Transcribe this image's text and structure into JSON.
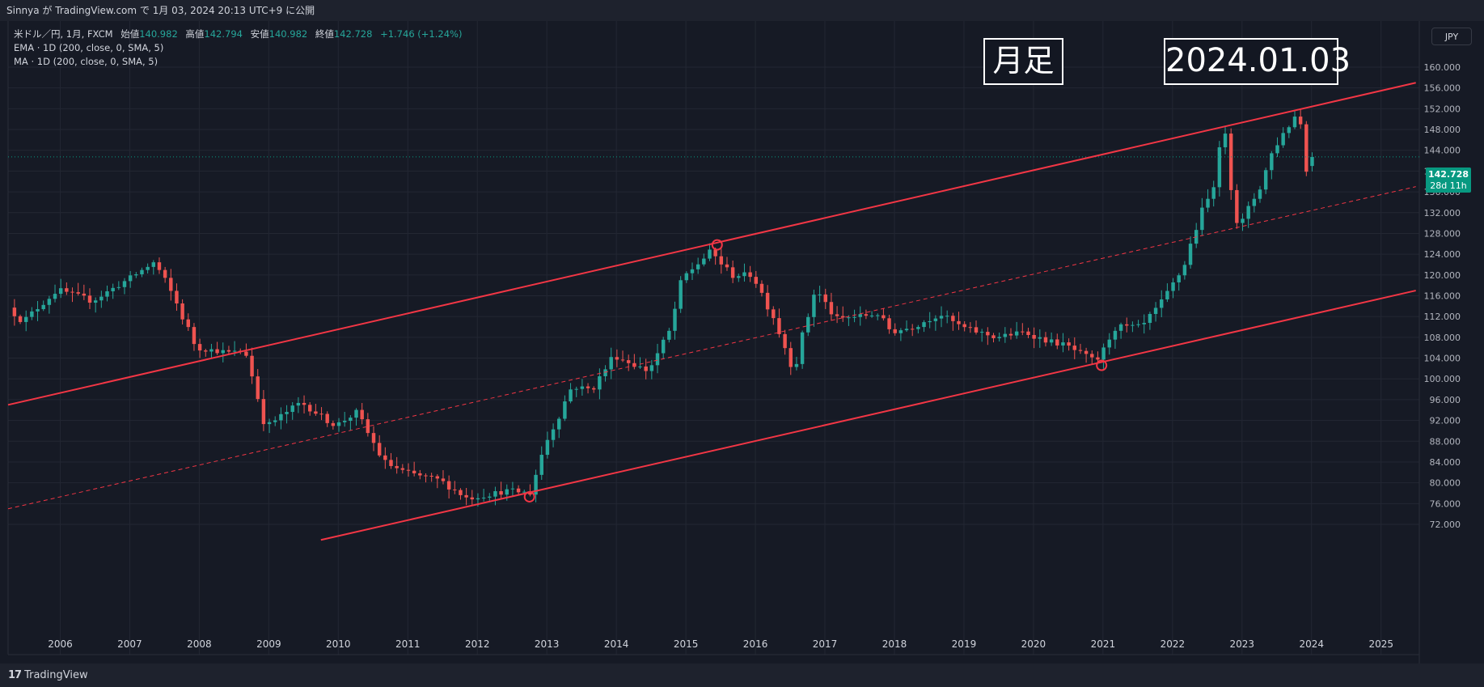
{
  "header": {
    "published_line": "Sinnya が TradingView.com で 1月 03, 2024 20:13 UTC+9 に公開"
  },
  "legend": {
    "symbol": "米ドル／円, 1月, FXCM",
    "open_label": "始値",
    "open_value": "140.982",
    "high_label": "高値",
    "high_value": "142.794",
    "low_label": "安値",
    "low_value": "140.982",
    "close_label": "終値",
    "close_value": "142.728",
    "change": "+1.746 (+1.24%)",
    "ema_line": "EMA · 1D (200, close, 0, SMA, 5)",
    "ma_line": "MA · 1D (200, close, 0, SMA, 5)"
  },
  "annotations": {
    "timeframe_box": "月足",
    "date_box": "2024.01.03"
  },
  "currency_button": "JPY",
  "price_tag": {
    "price": "142.728",
    "countdown": "28d 11h"
  },
  "footer": {
    "brand": "TradingView",
    "brand_mark": "17"
  },
  "colors": {
    "background": "#161a25",
    "up": "#26a69a",
    "down": "#ef5350",
    "trendline": "#f23645",
    "grid": "#232733"
  },
  "chart_data": {
    "type": "candlestick",
    "symbol": "USD/JPY",
    "interval": "1M",
    "ylim": [
      68,
      162
    ],
    "y_ticks": [
      72,
      76,
      80,
      84,
      88,
      92,
      96,
      100,
      104,
      108,
      112,
      116,
      120,
      124,
      128,
      132,
      136,
      140,
      144,
      148,
      152,
      156,
      160
    ],
    "x_ticks": [
      "2006",
      "2007",
      "2008",
      "2009",
      "2010",
      "2011",
      "2012",
      "2013",
      "2014",
      "2015",
      "2016",
      "2017",
      "2018",
      "2019",
      "2020",
      "2021",
      "2022",
      "2023",
      "2024",
      "2025"
    ],
    "xlim": [
      2005.25,
      2025.55
    ],
    "current_price": 142.728,
    "yearly_closes": [
      [
        2005.0,
        117.8
      ],
      [
        2005.5,
        111.0
      ],
      [
        2006.0,
        117.2
      ],
      [
        2006.5,
        115.0
      ],
      [
        2007.0,
        119.0
      ],
      [
        2007.4,
        122.5
      ],
      [
        2007.7,
        115.0
      ],
      [
        2008.0,
        106.0
      ],
      [
        2008.5,
        105.0
      ],
      [
        2008.7,
        105.5
      ],
      [
        2009.0,
        90.8
      ],
      [
        2009.5,
        95.5
      ],
      [
        2010.0,
        91.0
      ],
      [
        2010.3,
        93.5
      ],
      [
        2010.7,
        84.0
      ],
      [
        2011.0,
        82.0
      ],
      [
        2011.5,
        80.5
      ],
      [
        2011.9,
        77.0
      ],
      [
        2012.5,
        78.5
      ],
      [
        2012.8,
        78.0
      ],
      [
        2013.0,
        87.0
      ],
      [
        2013.4,
        98.5
      ],
      [
        2013.7,
        98.0
      ],
      [
        2014.0,
        104.5
      ],
      [
        2014.5,
        101.5
      ],
      [
        2014.8,
        109.0
      ],
      [
        2015.0,
        119.5
      ],
      [
        2015.4,
        124.5
      ],
      [
        2015.7,
        120.0
      ],
      [
        2016.0,
        120.0
      ],
      [
        2016.3,
        112.0
      ],
      [
        2016.6,
        101.5
      ],
      [
        2016.9,
        117.5
      ],
      [
        2017.2,
        111.5
      ],
      [
        2017.5,
        112.0
      ],
      [
        2017.8,
        112.5
      ],
      [
        2018.0,
        109.0
      ],
      [
        2018.3,
        110.0
      ],
      [
        2018.7,
        112.5
      ],
      [
        2019.0,
        110.0
      ],
      [
        2019.5,
        108.0
      ],
      [
        2019.9,
        109.0
      ],
      [
        2020.2,
        107.5
      ],
      [
        2020.5,
        106.5
      ],
      [
        2020.9,
        103.5
      ],
      [
        2021.0,
        104.0
      ],
      [
        2021.2,
        110.0
      ],
      [
        2021.6,
        110.0
      ],
      [
        2021.9,
        115.0
      ],
      [
        2022.2,
        121.5
      ],
      [
        2022.4,
        130.0
      ],
      [
        2022.6,
        136.0
      ],
      [
        2022.8,
        148.0
      ],
      [
        2022.95,
        131.0
      ],
      [
        2023.05,
        130.5
      ],
      [
        2023.3,
        137.0
      ],
      [
        2023.5,
        144.5
      ],
      [
        2023.75,
        149.5
      ],
      [
        2023.85,
        151.5
      ],
      [
        2023.9,
        148.0
      ],
      [
        2023.95,
        141.0
      ],
      [
        2024.0,
        142.728
      ]
    ],
    "trendlines": {
      "upper": [
        [
          2005.25,
          95.0
        ],
        [
          2025.5,
          157.0
        ]
      ],
      "middle_dashed": [
        [
          2005.25,
          75.0
        ],
        [
          2025.5,
          137.0
        ]
      ],
      "lower": [
        [
          2009.75,
          69.0
        ],
        [
          2025.5,
          117.0
        ]
      ]
    },
    "marked_points": [
      [
        2015.45,
        125.8
      ],
      [
        2012.75,
        77.3
      ],
      [
        2020.98,
        102.6
      ]
    ]
  }
}
